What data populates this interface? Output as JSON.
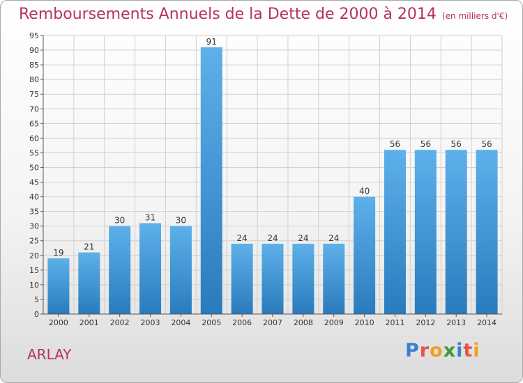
{
  "title": "Remboursements Annuels de la Dette de 2000 à 2014",
  "subtitle": "(en milliers d'€)",
  "commune": "ARLAY",
  "logo": {
    "text": "Proxiti",
    "letters": [
      {
        "ch": "P",
        "color": "#3a7fd0"
      },
      {
        "ch": "r",
        "color": "#e8534a"
      },
      {
        "ch": "o",
        "color": "#f0a020"
      },
      {
        "ch": "x",
        "color": "#3a9a3a"
      },
      {
        "ch": "i",
        "color": "#3a7fd0"
      },
      {
        "ch": "t",
        "color": "#e8534a"
      },
      {
        "ch": "i",
        "color": "#f0a020"
      }
    ]
  },
  "colors": {
    "title": "#b6325e",
    "bar_light": "#5eb0ea",
    "bar_dark": "#2a7bbd",
    "grid": "#d0d0d0"
  },
  "chart_data": {
    "type": "bar",
    "categories": [
      "2000",
      "2001",
      "2002",
      "2003",
      "2004",
      "2005",
      "2006",
      "2007",
      "2008",
      "2009",
      "2010",
      "2011",
      "2012",
      "2013",
      "2014"
    ],
    "values": [
      19,
      21,
      30,
      31,
      30,
      91,
      24,
      24,
      24,
      24,
      40,
      56,
      56,
      56,
      56
    ],
    "ylim": [
      0,
      95
    ],
    "yticks": [
      0,
      5,
      10,
      15,
      20,
      25,
      30,
      35,
      40,
      45,
      50,
      55,
      60,
      65,
      70,
      75,
      80,
      85,
      90,
      95
    ],
    "grid": true
  }
}
